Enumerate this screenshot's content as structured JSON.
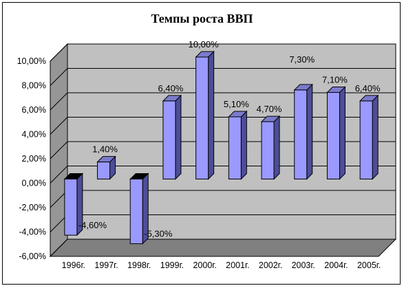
{
  "chart_data": {
    "type": "bar",
    "title": "Темпы роста ВВП",
    "categories": [
      "1996г.",
      "1997г.",
      "1998г.",
      "1999г.",
      "2000г.",
      "2001г.",
      "2002г.",
      "2003г.",
      "2004г.",
      "2005г."
    ],
    "series": [
      {
        "values": [
          -4.6,
          1.4,
          -5.3,
          6.4,
          10.0,
          5.1,
          4.7,
          7.3,
          7.1,
          6.4
        ],
        "data_labels": [
          "-4,60%",
          "1,40%",
          "-5,30%",
          "6,40%",
          "10,00%",
          "5,10%",
          "4,70%",
          "7,30%",
          "7,10%",
          "6,40%"
        ]
      }
    ],
    "y_ticks": [
      "-6,00%",
      "-4,00%",
      "-2,00%",
      "0,00%",
      "2,00%",
      "4,00%",
      "6,00%",
      "8,00%",
      "10,00%"
    ],
    "ylim": [
      -6,
      10
    ],
    "xlabel": "",
    "ylabel": "",
    "grid": true,
    "legend": "none",
    "style": "3d-column",
    "colors": {
      "bar_front": "#9999ff",
      "bar_side": "#4d4d99",
      "bar_top": "#7b7bcc",
      "back_wall": "#c0c0c0",
      "side_wall": "#969696",
      "floor": "#808080",
      "gridline": "#000000"
    }
  }
}
